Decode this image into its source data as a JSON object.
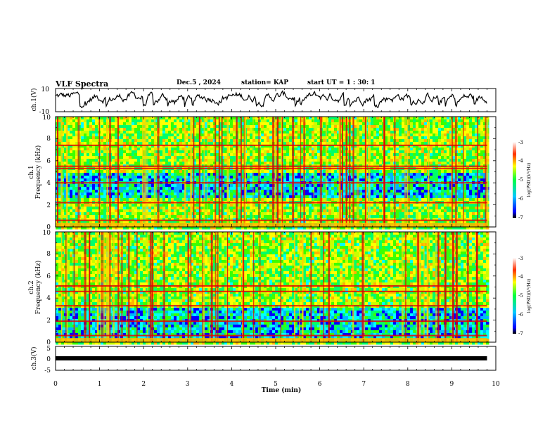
{
  "header": {
    "title": "VLF Spectra",
    "date": "Dec.5 , 2024",
    "station": "station= KAP",
    "start": "start UT =  1 : 30: 1"
  },
  "colors": {
    "spectrum": [
      "#00007a",
      "#0000ff",
      "#00b4ff",
      "#00ffff",
      "#00ff6a",
      "#3cff00",
      "#c8ff00",
      "#ffff00",
      "#ffb400",
      "#ff2a00",
      "#c80000"
    ]
  },
  "chart_data": [
    {
      "type": "line",
      "name": "ch1-voltage",
      "ylabel": "ch.1(V)",
      "ylim": [
        -10,
        10
      ],
      "yticks": [
        "10",
        "-10"
      ],
      "x_range_min": [
        0,
        9.8
      ],
      "note": "noisy waveform between about -10 V and +8 V over the full 0-9.8 min span"
    },
    {
      "type": "heatmap",
      "name": "ch1-spectrogram",
      "ylabel_line1": "ch.1",
      "ylabel_line2": "Frequency (kHz)",
      "ylim": [
        0,
        10
      ],
      "yticks": [
        "0",
        "2",
        "4",
        "6",
        "8",
        "10"
      ],
      "bands_khz": [
        0.6,
        2.2,
        4.0,
        5.3,
        5.5,
        7.4
      ],
      "quiet_band_khz": [
        2.6,
        5.0
      ],
      "colorbar": {
        "ticks": [
          "-3",
          "-4",
          "-5",
          "-6",
          "-7"
        ],
        "label": "log(PSD)(V²/Hz)",
        "range": [
          -7,
          -3
        ]
      }
    },
    {
      "type": "heatmap",
      "name": "ch2-spectrogram",
      "ylabel_line1": "ch.2",
      "ylabel_line2": "Frequency (kHz)",
      "ylim": [
        0,
        10
      ],
      "yticks": [
        "0",
        "2",
        "4",
        "6",
        "8",
        "10"
      ],
      "bands_khz": [
        0.6,
        1.9,
        3.3,
        4.6,
        5.1
      ],
      "quiet_band_khz": [
        0.4,
        3.2
      ],
      "colorbar": {
        "ticks": [
          "-3",
          "-4",
          "-5",
          "-6",
          "-7"
        ],
        "label": "log(PSD)(V²/Hz)",
        "range": [
          -7,
          -3
        ]
      }
    },
    {
      "type": "line",
      "name": "ch3-voltage",
      "ylabel": "ch.3(V)",
      "ylim": [
        -5,
        5
      ],
      "yticks": [
        "5",
        "0",
        "-5"
      ],
      "constant_value_v": 0,
      "x_range_min": [
        0,
        9.8
      ]
    },
    {
      "type": "axis",
      "name": "time-axis",
      "xlabel": "Time (min)",
      "xlim": [
        0,
        10
      ],
      "xticks": [
        "0",
        "1",
        "2",
        "3",
        "4",
        "5",
        "6",
        "7",
        "8",
        "9",
        "10"
      ]
    }
  ]
}
